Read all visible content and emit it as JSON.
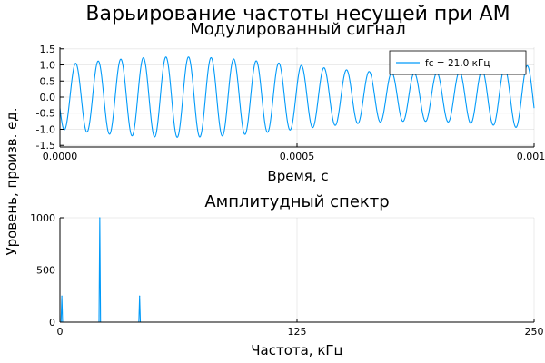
{
  "figure": {
    "suptitle": "Варьирование частоты несущей при АМ",
    "series_color": "#009af9"
  },
  "chart_data": [
    {
      "type": "line",
      "title": "Модулированный сигнал",
      "xlabel": "Время, с",
      "ylabel": "Уровень,  произв. ед.",
      "xlim": [
        0,
        0.001
      ],
      "ylim": [
        -1.55,
        1.55
      ],
      "xticks": [
        0,
        0.0005,
        0.001
      ],
      "xtick_labels": [
        "0.0000",
        "0.0005",
        "0.0010"
      ],
      "yticks": [
        -1.5,
        -1.0,
        -0.5,
        0.0,
        0.5,
        1.0,
        1.5
      ],
      "ytick_labels": [
        "-1.5",
        "-1.0",
        "-0.5",
        "0.0",
        "0.5",
        "1.0",
        "1.5"
      ],
      "grid": true,
      "legend_position": "top-right",
      "series": [
        {
          "name": "fc = 21.0 кГц",
          "color": "#009af9",
          "signal": {
            "carrier_hz": 21000,
            "modulation_hz": 1000,
            "offset": 0.25,
            "dc": 0.0,
            "x_start": 0,
            "x_end": 0.001,
            "samples": 1500
          }
        }
      ]
    },
    {
      "type": "line",
      "title": "Амплитудный спектр",
      "xlabel": "Частота, кГц",
      "ylabel": "Уровень,  произв. ед.",
      "xlim": [
        0,
        250
      ],
      "ylim": [
        0,
        1000
      ],
      "xticks": [
        0,
        125,
        250
      ],
      "xtick_labels": [
        "0",
        "125",
        "250"
      ],
      "yticks": [
        0,
        500,
        1000
      ],
      "ytick_labels": [
        "0",
        "500",
        "1000"
      ],
      "grid": true,
      "series": [
        {
          "name": "fc = 21.0 кГц",
          "color": "#009af9",
          "peaks": [
            {
              "x": 1,
              "y": 250
            },
            {
              "x": 21,
              "y": 1000
            },
            {
              "x": 42,
              "y": 250
            }
          ]
        }
      ]
    }
  ]
}
